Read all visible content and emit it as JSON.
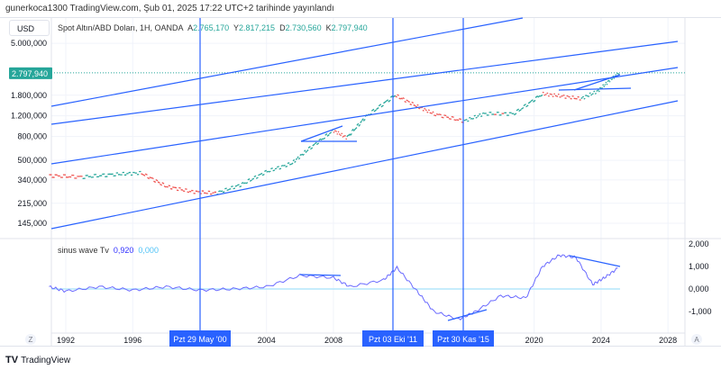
{
  "published": "gunerkoca1300 TradingView.com, Şub 01, 2025 17:22 UTC+2 tarihinde yayınlandı",
  "currency": "USD",
  "symbol": {
    "title": "Spot Altın/ABD Doları, 1H, OANDA",
    "o_label": "A",
    "o": "2.765,170",
    "h_label": "Y",
    "h": "2.817,215",
    "l_label": "D",
    "l": "2.730,560",
    "c_label": "K",
    "c": "2.797,940"
  },
  "last_price": "2.797,940",
  "indicator": {
    "name": "sinus wave Tv",
    "v1": "0,920",
    "v2": "0,000"
  },
  "time_markers": [
    "Pzt 29 May '00",
    "Pzt 03 Eki '11",
    "Pzt 30 Kas '15"
  ],
  "scale_buttons": {
    "left": "Z",
    "right": "A"
  },
  "footer": "TradingView",
  "colors": {
    "up": "#26a69a",
    "down": "#ef5350",
    "drawing": "#2962ff",
    "indicator": "#6a6aff",
    "zero": "#b3e5fc"
  },
  "chart_data": [
    {
      "type": "line",
      "title": "Spot Altın/ABD Doları, 1H, OANDA",
      "scale": "log",
      "y_ticks": [
        "5.000,000",
        "1.800,000",
        "1.200,000",
        "800,000",
        "500,000",
        "340,000",
        "215,000",
        "145,000"
      ],
      "y_tick_values": [
        5000000,
        1800000,
        1200000,
        800000,
        500000,
        340000,
        215000,
        145000
      ],
      "x_ticks": [
        "1992",
        "1996",
        "2004",
        "2008",
        "2020",
        "2024",
        "2028"
      ],
      "x_tick_values": [
        1992,
        1996,
        2004,
        2008,
        2020,
        2024,
        2028
      ],
      "x": [
        1991,
        1993,
        1995,
        1996.5,
        1998,
        1999.5,
        2001,
        2002.5,
        2004,
        2005.5,
        2006.5,
        2008,
        2008.8,
        2010,
        2011.7,
        2013,
        2014,
        2015.8,
        2017,
        2018.8,
        2020.5,
        2021.5,
        2022.8,
        2023.8,
        2024.5,
        2025.1
      ],
      "y": [
        370000,
        360000,
        380000,
        390000,
        300000,
        270000,
        262000,
        310000,
        400000,
        470000,
        620000,
        900000,
        780000,
        1200000,
        1800000,
        1450000,
        1250000,
        1080000,
        1250000,
        1250000,
        1850000,
        1780000,
        1680000,
        1950000,
        2400000,
        2797940
      ]
    },
    {
      "type": "line",
      "title": "sinus wave Tv",
      "y_ticks": [
        "2,000",
        "1,000",
        "0,000",
        "-1,000"
      ],
      "y_tick_values": [
        2000,
        1000,
        0,
        -1000
      ],
      "x": [
        1991,
        1992,
        1994,
        1996,
        1998,
        2000,
        2002,
        2004,
        2006,
        2008,
        2009,
        2011,
        2011.8,
        2013,
        2014,
        2015.5,
        2016.5,
        2018,
        2019.5,
        2020.5,
        2021.5,
        2022.5,
        2023.5,
        2024.2,
        2025
      ],
      "y": [
        100,
        -100,
        100,
        -50,
        100,
        -50,
        0,
        100,
        600,
        500,
        100,
        400,
        950,
        -100,
        -1000,
        -1350,
        -1000,
        -300,
        -400,
        1000,
        1500,
        1400,
        200,
        500,
        920
      ]
    }
  ]
}
